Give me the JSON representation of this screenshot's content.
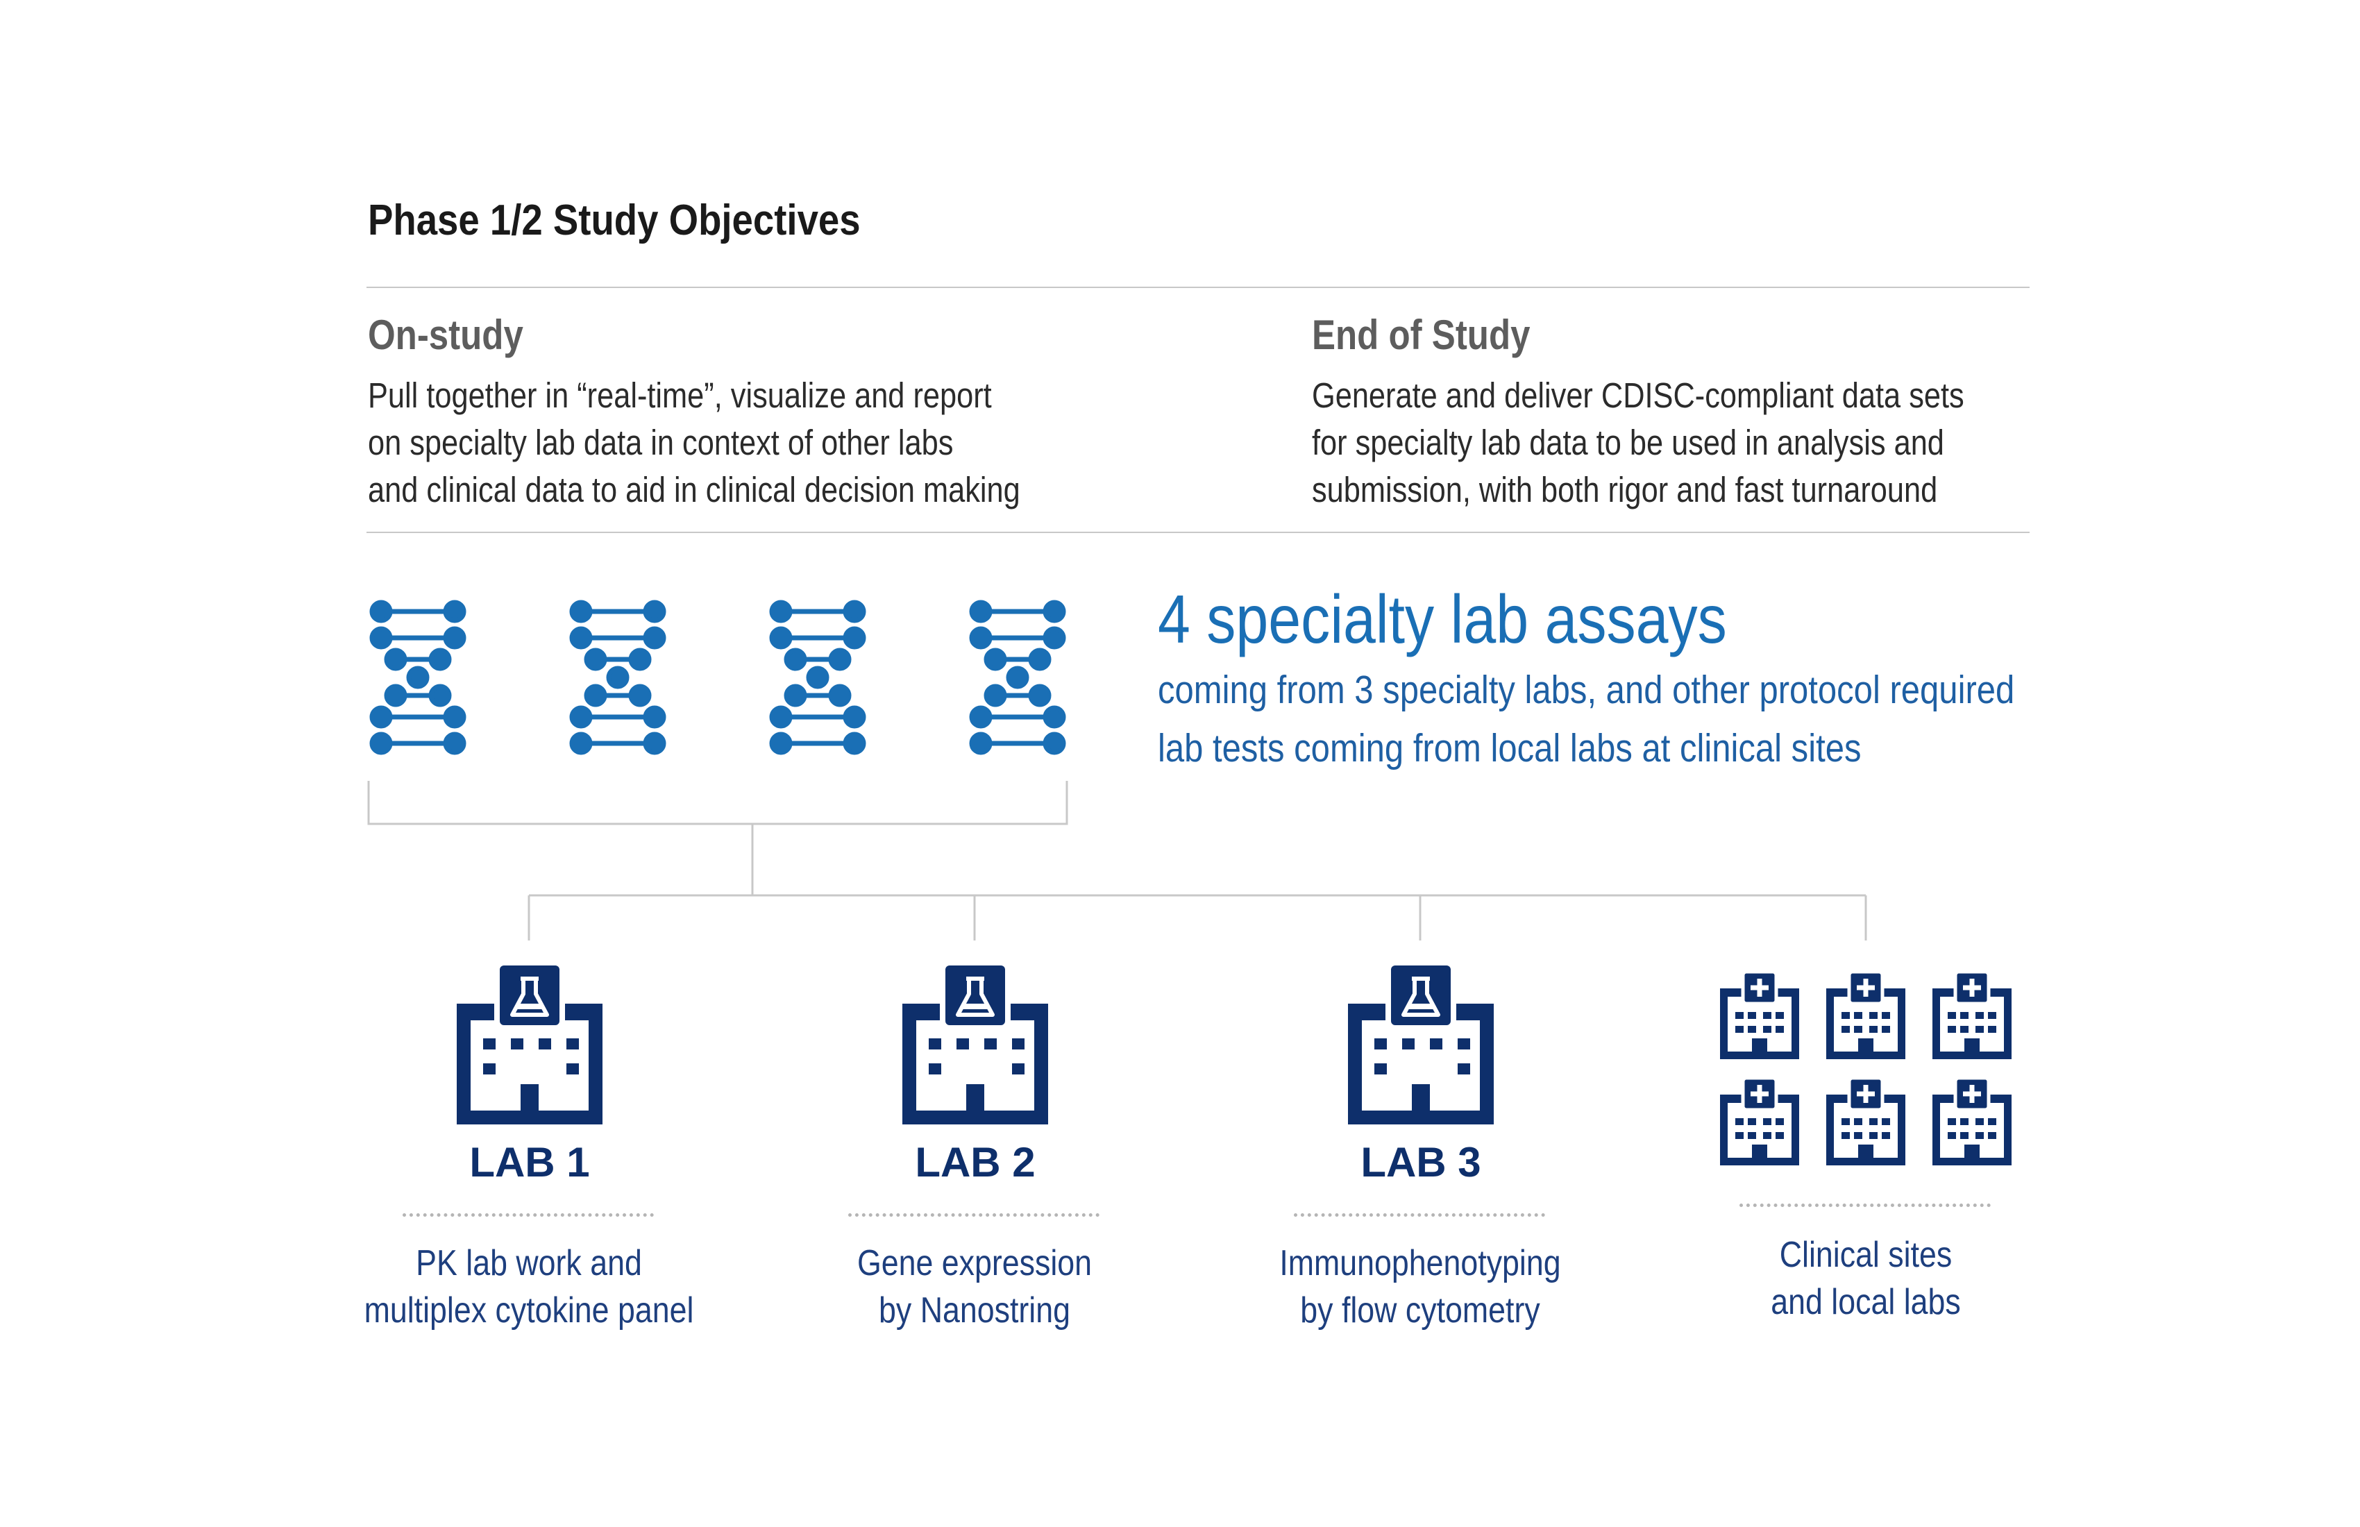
{
  "title": "Phase 1/2 Study Objectives",
  "on_study": {
    "heading": "On-study",
    "lines": [
      "Pull together in “real-time”, visualize and report",
      "on specialty lab data in context of other labs",
      "and clinical data to aid in clinical decision making"
    ]
  },
  "end_of_study": {
    "heading": "End of Study",
    "lines": [
      "Generate and deliver CDISC-compliant data sets",
      "for specialty lab data to be used in analysis and",
      "submission, with both rigor and fast turnaround"
    ]
  },
  "assays": {
    "title": "4 specialty lab assays",
    "lines": [
      "coming from 3 specialty labs, and other protocol required",
      "lab tests coming from local labs at clinical sites"
    ],
    "icon": "dna-icon",
    "icon_count": 4
  },
  "labs": [
    {
      "label": "LAB 1",
      "desc": [
        "PK lab work and",
        "multiplex cytokine panel"
      ],
      "icon": "lab-building-icon"
    },
    {
      "label": "LAB 2",
      "desc": [
        "Gene expression",
        "by Nanostring"
      ],
      "icon": "lab-building-icon"
    },
    {
      "label": "LAB 3",
      "desc": [
        "Immunophenotyping",
        "by flow cytometry"
      ],
      "icon": "lab-building-icon"
    }
  ],
  "clinical": {
    "desc": [
      "Clinical sites",
      "and local labs"
    ],
    "icon": "hospital-icon",
    "icon_count": 6
  },
  "colors": {
    "dna_blue": "#1a6fb5",
    "navy": "#0e2f6b",
    "text_blue": "#1e5fa3",
    "rule_gray": "#c8c8c8"
  }
}
